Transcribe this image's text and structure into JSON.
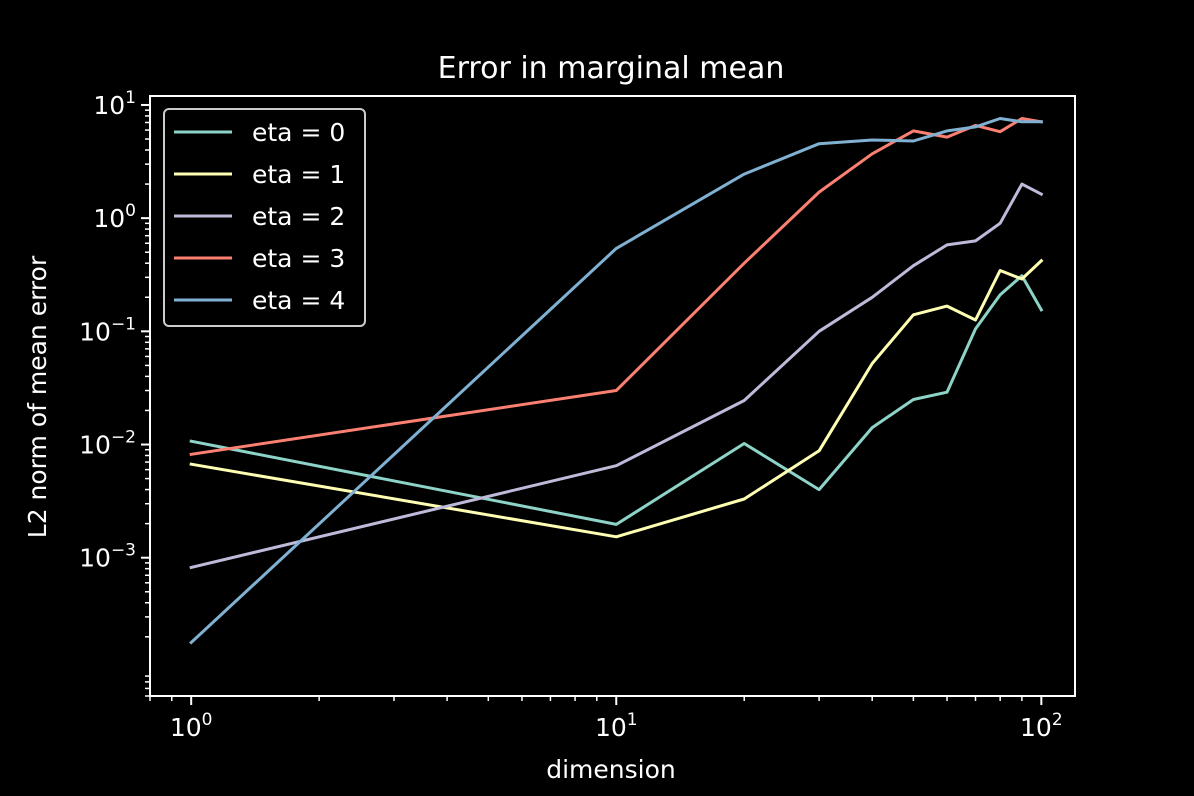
{
  "chart_data": {
    "type": "line",
    "title": "Error in marginal mean",
    "xlabel": "dimension",
    "ylabel": "L2 norm of mean error",
    "xscale": "log",
    "yscale": "log",
    "xlim": [
      0.8,
      120
    ],
    "ylim": [
      6e-05,
      12
    ],
    "x_major_ticks": [
      {
        "value": 1,
        "base": "10",
        "exp": "0"
      },
      {
        "value": 10,
        "base": "10",
        "exp": "1"
      },
      {
        "value": 100,
        "base": "10",
        "exp": "2"
      }
    ],
    "y_major_ticks": [
      {
        "value": 0.001,
        "base": "10",
        "exp": "−3"
      },
      {
        "value": 0.01,
        "base": "10",
        "exp": "−2"
      },
      {
        "value": 0.1,
        "base": "10",
        "exp": "−1"
      },
      {
        "value": 1,
        "base": "10",
        "exp": "0"
      },
      {
        "value": 10,
        "base": "10",
        "exp": "1"
      }
    ],
    "grid": false,
    "legend_position": "top-left",
    "colors": {
      "background": "#000000",
      "axes": "#ffffff",
      "text": "#ffffff"
    },
    "series": [
      {
        "name": "eta = 0",
        "color": "#8dd3c7",
        "x": [
          1,
          10,
          20,
          30,
          40,
          50,
          60,
          70,
          80,
          90,
          100
        ],
        "y": [
          0.0107,
          0.00197,
          0.0102,
          0.004,
          0.0141,
          0.025,
          0.029,
          0.105,
          0.21,
          0.31,
          0.155
        ]
      },
      {
        "name": "eta = 1",
        "color": "#ffffb3",
        "x": [
          1,
          10,
          20,
          30,
          40,
          50,
          60,
          70,
          80,
          90,
          100
        ],
        "y": [
          0.0067,
          0.00153,
          0.0033,
          0.0088,
          0.052,
          0.14,
          0.167,
          0.126,
          0.345,
          0.29,
          0.42
        ]
      },
      {
        "name": "eta = 2",
        "color": "#bebada",
        "x": [
          1,
          10,
          20,
          30,
          40,
          50,
          60,
          70,
          80,
          90,
          100
        ],
        "y": [
          0.00082,
          0.0065,
          0.0245,
          0.1,
          0.2,
          0.38,
          0.58,
          0.63,
          0.9,
          2.0,
          1.63
        ]
      },
      {
        "name": "eta = 3",
        "color": "#fb8072",
        "x": [
          1,
          10,
          20,
          30,
          40,
          50,
          60,
          70,
          80,
          90,
          100
        ],
        "y": [
          0.0082,
          0.03,
          0.4,
          1.7,
          3.7,
          5.9,
          5.2,
          6.6,
          5.8,
          7.6,
          7.1
        ]
      },
      {
        "name": "eta = 4",
        "color": "#80b1d3",
        "x": [
          1,
          10,
          20,
          30,
          40,
          50,
          60,
          70,
          80,
          90,
          100
        ],
        "y": [
          0.000178,
          0.54,
          2.45,
          4.55,
          4.9,
          4.8,
          5.9,
          6.4,
          7.6,
          7.1,
          7.1
        ]
      }
    ]
  }
}
